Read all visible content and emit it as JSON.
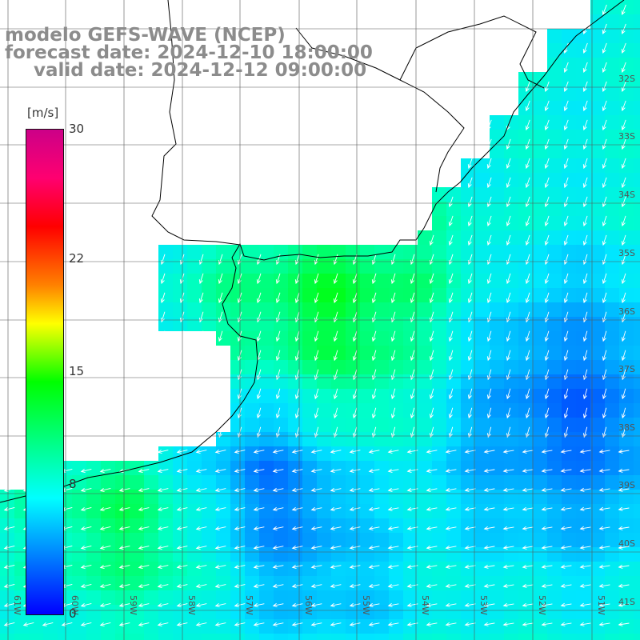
{
  "header": {
    "model": "modelo GEFS-WAVE (NCEP)",
    "forecast": "forecast date: 2024-12-10 18:00:00",
    "valid": "valid date: 2024-12-12 09:00:00"
  },
  "legend": {
    "units": "[m/s]",
    "ticks": [
      {
        "label": "30",
        "value": 30
      },
      {
        "label": "22",
        "value": 22
      },
      {
        "label": "15",
        "value": 15
      },
      {
        "label": "8",
        "value": 8
      },
      {
        "label": "0",
        "value": 0
      }
    ]
  },
  "grid": {
    "lat_labels": [
      "32S",
      "33S",
      "34S",
      "35S",
      "36S",
      "37S",
      "38S",
      "39S",
      "40S",
      "41S"
    ],
    "lon_labels": [
      "61W",
      "60W",
      "59W",
      "58W",
      "57W",
      "56W",
      "55W",
      "54W",
      "53W",
      "52W",
      "51W"
    ]
  },
  "colors": {
    "land": "#ffffff",
    "coast": "#000000",
    "grid": "#555555",
    "arrow": "#ffffff"
  }
}
